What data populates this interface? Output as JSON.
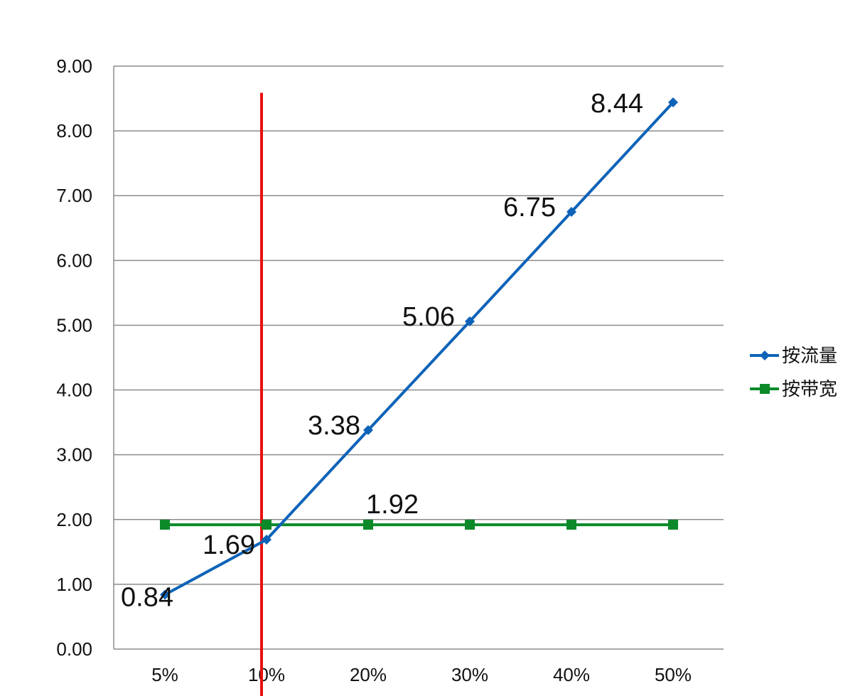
{
  "chart_data": {
    "type": "line",
    "title": "",
    "xlabel": "",
    "ylabel": "",
    "categories": [
      "5%",
      "10%",
      "20%",
      "30%",
      "40%",
      "50%"
    ],
    "ylim": [
      0,
      9
    ],
    "y_ticks": [
      "0.00",
      "1.00",
      "2.00",
      "3.00",
      "4.00",
      "5.00",
      "6.00",
      "7.00",
      "8.00",
      "9.00"
    ],
    "grid": true,
    "legend_position": "right",
    "series": [
      {
        "name": "按流量",
        "color": "#0E63B8",
        "marker": "diamond",
        "values": [
          0.84,
          1.69,
          3.38,
          5.06,
          6.75,
          8.44
        ],
        "data_labels": [
          "0.84",
          "1.69",
          "3.38",
          "5.06",
          "6.75",
          "8.44"
        ]
      },
      {
        "name": "按带宽",
        "color": "#0C8A2A",
        "marker": "square",
        "values": [
          1.92,
          1.92,
          1.92,
          1.92,
          1.92,
          1.92
        ],
        "data_labels": [
          "",
          "",
          "1.92",
          "",
          "",
          ""
        ]
      }
    ],
    "reference_line": {
      "category": "10%",
      "color": "#E8120C",
      "from_value": 0,
      "to_value": 8.5
    }
  }
}
